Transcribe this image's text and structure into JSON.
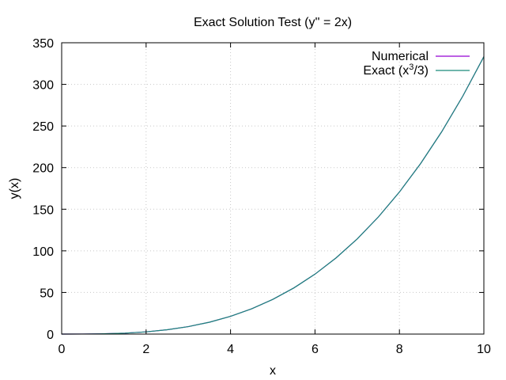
{
  "chart_data": {
    "type": "line",
    "title": "Exact Solution Test (y'' = 2x)",
    "xlabel": "x",
    "ylabel": "y(x)",
    "xlim": [
      0,
      10
    ],
    "ylim": [
      0,
      350
    ],
    "xticks": [
      0,
      2,
      4,
      6,
      8,
      10
    ],
    "yticks": [
      0,
      50,
      100,
      150,
      200,
      250,
      300,
      350
    ],
    "grid": true,
    "legend_position": "top-right",
    "x": [
      0,
      0.5,
      1,
      1.5,
      2,
      2.5,
      3,
      3.5,
      4,
      4.5,
      5,
      5.5,
      6,
      6.5,
      7,
      7.5,
      8,
      8.5,
      9,
      9.5,
      10
    ],
    "series": [
      {
        "name": "Numerical",
        "color": "#9400d3",
        "values": [
          0,
          0.04,
          0.33,
          1.13,
          2.67,
          5.21,
          9,
          14.29,
          21.33,
          30.38,
          41.67,
          55.46,
          72,
          91.54,
          114.33,
          140.63,
          170.67,
          204.71,
          243,
          285.79,
          333.33
        ]
      },
      {
        "name": "Exact (x³/3)",
        "color": "#1a8a7a",
        "legend": {
          "prefix": "Exact (x",
          "sup": "3",
          "suffix": "/3)"
        },
        "values": [
          0,
          0.04,
          0.33,
          1.13,
          2.67,
          5.21,
          9,
          14.29,
          21.33,
          30.38,
          41.67,
          55.46,
          72,
          91.54,
          114.33,
          140.63,
          170.67,
          204.71,
          243,
          285.79,
          333.33
        ]
      }
    ]
  }
}
